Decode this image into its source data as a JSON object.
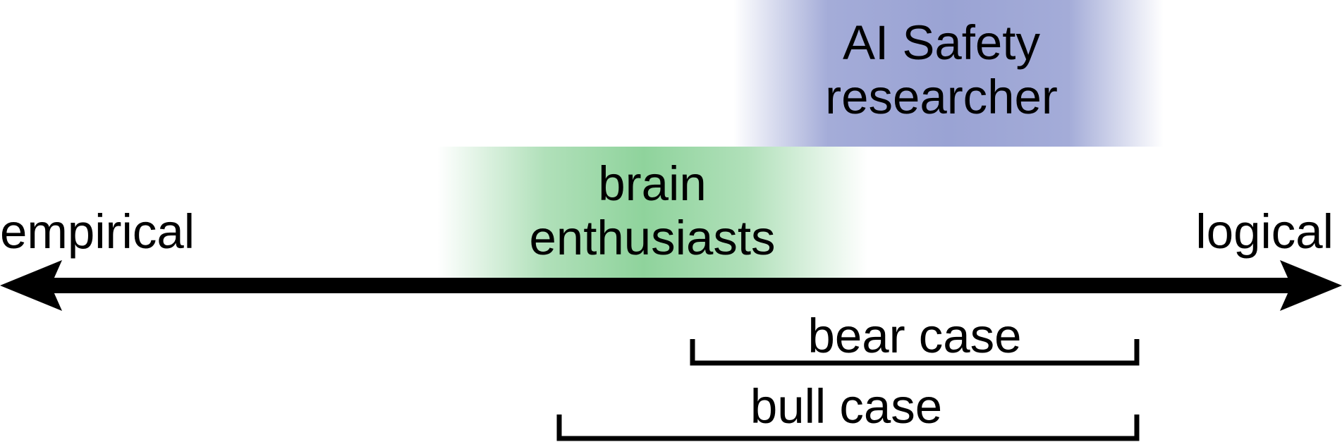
{
  "axis": {
    "left_label": "empirical",
    "right_label": "logical"
  },
  "regions": {
    "ai_safety": {
      "line1": "AI Safety",
      "line2": "researcher",
      "color": "#9aa3d4"
    },
    "brain": {
      "line1": "brain",
      "line2": "enthusiasts",
      "color": "#8fd39c"
    }
  },
  "ranges": {
    "bear_case": "bear case",
    "bull_case": "bull case"
  }
}
